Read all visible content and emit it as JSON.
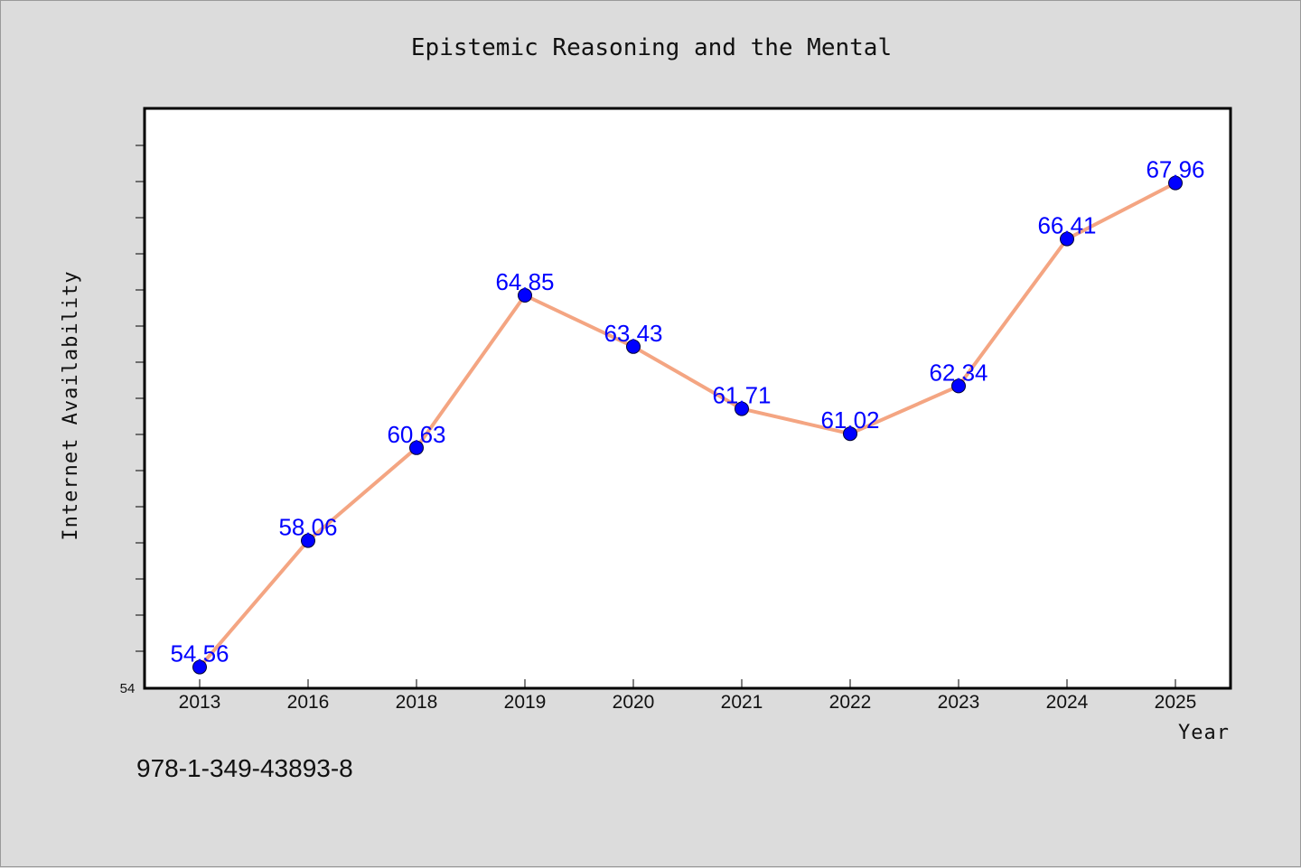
{
  "chart_data": {
    "type": "line",
    "title": "Epistemic Reasoning and the Mental",
    "xlabel": "Year",
    "ylabel": "Internet Availability",
    "categories": [
      "2013",
      "2016",
      "2018",
      "2019",
      "2020",
      "2021",
      "2022",
      "2023",
      "2024",
      "2025"
    ],
    "series": [
      {
        "values": [
          54.56,
          58.06,
          60.63,
          64.85,
          63.43,
          61.71,
          61.02,
          62.34,
          66.41,
          67.96
        ]
      }
    ],
    "data_labels": [
      "54.56",
      "58.06",
      "60.63",
      "64.85",
      "63.43",
      "61.71",
      "61.02",
      "62.34",
      "66.41",
      "67.96"
    ],
    "ylim": [
      54,
      70
    ],
    "ytick_labels": [
      "54"
    ],
    "grid": false,
    "legend": "none",
    "colors": {
      "line": "#f4a582",
      "marker": "#0000ff",
      "label": "#0000ff",
      "background": "#dcdcdc",
      "plot_bg": "#ffffff"
    }
  },
  "footer": {
    "isbn": "978-1-349-43893-8"
  }
}
